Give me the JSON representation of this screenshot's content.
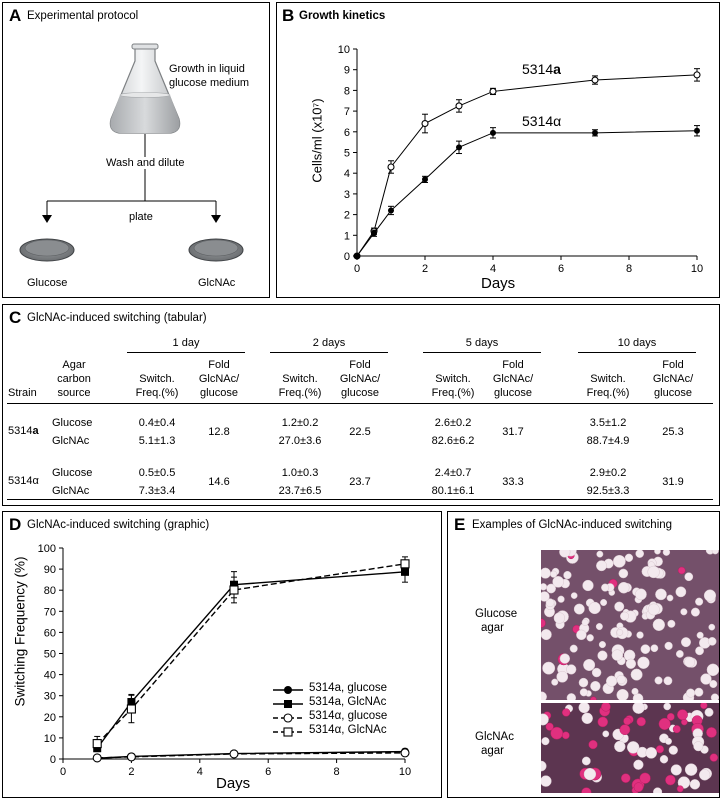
{
  "panelA": {
    "letter": "A",
    "title": "Experimental protocol",
    "growth_label_l1": "Growth in liquid",
    "growth_label_l2": "glucose medium",
    "wash_label": "Wash and dilute",
    "plate_label": "plate",
    "left_plate_label": "Glucose",
    "right_plate_label": "GlcNAc"
  },
  "panelB": {
    "letter": "B",
    "title": "Growth kinetics",
    "series_label_a": "5314a",
    "series_label_alpha": "5314α",
    "xlabel": "Days",
    "ylabel": "Cells/ml (x10⁷)"
  },
  "panelC": {
    "letter": "C",
    "title": "GlcNAc-induced switching (tabular)",
    "time_headers": [
      "1 day",
      "2 days",
      "5 days",
      "10 days"
    ],
    "col_strain": "Strain",
    "col_source_l1": "Agar",
    "col_source_l2": "carbon",
    "col_source_l3": "source",
    "col_freq_l1": "Switch.",
    "col_freq_l2": "Freq.(%)",
    "col_fold_l1": "Fold",
    "col_fold_l2": "GlcNAc/",
    "col_fold_l3": "glucose",
    "rows": [
      {
        "strain": "5314a",
        "source": "Glucose",
        "freqs": [
          "0.4±0.4",
          "1.2±0.2",
          "2.6±0.2",
          "3.5±1.2"
        ]
      },
      {
        "strain": "",
        "source": "GlcNAc",
        "freqs": [
          "5.1±1.3",
          "27.0±3.6",
          "82.6±6.2",
          "88.7±4.9"
        ]
      },
      {
        "strain": "5314α",
        "source": "Glucose",
        "freqs": [
          "0.5±0.5",
          "1.0±0.3",
          "2.4±0.7",
          "2.9±0.2"
        ]
      },
      {
        "strain": "",
        "source": "GlcNAc",
        "freqs": [
          "7.3±3.4",
          "23.7±6.5",
          "80.1±6.1",
          "92.5±3.3"
        ]
      }
    ],
    "folds": [
      [
        "12.8",
        "22.5",
        "31.7",
        "25.3"
      ],
      [
        "14.6",
        "23.7",
        "33.3",
        "31.9"
      ]
    ]
  },
  "panelD": {
    "letter": "D",
    "title": "GlcNAc-induced switching (graphic)",
    "xlabel": "Days",
    "ylabel": "Switching Frequency (%)",
    "legend": [
      {
        "strain": "5314a",
        "medium": ", glucose"
      },
      {
        "strain": "5314a",
        "medium": ", GlcNAc"
      },
      {
        "strain": "5314α",
        "medium": ", glucose"
      },
      {
        "strain": "5314α",
        "medium": ", GlcNAc"
      }
    ]
  },
  "panelE": {
    "letter": "E",
    "title": "Examples of GlcNAc-induced switching",
    "top_label_l1": "Glucose",
    "top_label_l2": "agar",
    "bottom_label_l1": "GlcNAc",
    "bottom_label_l2": "agar"
  },
  "chart_data": [
    {
      "type": "line",
      "title": "Growth kinetics",
      "xlabel": "Days",
      "ylabel": "Cells/ml (x10⁷)",
      "xlim": [
        0,
        10
      ],
      "ylim": [
        0,
        10
      ],
      "xticks": [
        0,
        2,
        4,
        6,
        8,
        10
      ],
      "yticks": [
        0,
        1,
        2,
        3,
        4,
        5,
        6,
        7,
        8,
        9,
        10
      ],
      "grid": false,
      "series": [
        {
          "name": "5314a",
          "marker": "open-circle",
          "x": [
            0,
            0.5,
            1,
            2,
            3,
            4,
            7,
            10
          ],
          "y": [
            0,
            1.2,
            4.3,
            6.4,
            7.25,
            7.95,
            8.5,
            8.75
          ],
          "err": [
            0.05,
            0.15,
            0.3,
            0.45,
            0.3,
            0.15,
            0.2,
            0.3
          ]
        },
        {
          "name": "5314α",
          "marker": "filled-circle",
          "x": [
            0,
            0.5,
            1,
            2,
            3,
            4,
            7,
            10
          ],
          "y": [
            0,
            1.1,
            2.2,
            3.7,
            5.25,
            5.95,
            5.95,
            6.05
          ],
          "err": [
            0.05,
            0.15,
            0.2,
            0.15,
            0.3,
            0.25,
            0.15,
            0.25
          ]
        }
      ]
    },
    {
      "type": "table",
      "title": "GlcNAc-induced switching (tabular)",
      "columns": [
        "Strain",
        "Agar carbon source",
        "1 day Switch. Freq.(%)",
        "1 day Fold GlcNAc/glucose",
        "2 days Switch. Freq.(%)",
        "2 days Fold GlcNAc/glucose",
        "5 days Switch. Freq.(%)",
        "5 days Fold GlcNAc/glucose",
        "10 days Switch. Freq.(%)",
        "10 days Fold GlcNAc/glucose"
      ],
      "rows": [
        [
          "5314a",
          "Glucose",
          "0.4±0.4",
          "12.8",
          "1.2±0.2",
          "22.5",
          "2.6±0.2",
          "31.7",
          "3.5±1.2",
          "25.3"
        ],
        [
          "5314a",
          "GlcNAc",
          "5.1±1.3",
          "12.8",
          "27.0±3.6",
          "22.5",
          "82.6±6.2",
          "31.7",
          "88.7±4.9",
          "25.3"
        ],
        [
          "5314α",
          "Glucose",
          "0.5±0.5",
          "14.6",
          "1.0±0.3",
          "23.7",
          "2.4±0.7",
          "33.3",
          "2.9±0.2",
          "31.9"
        ],
        [
          "5314α",
          "GlcNAc",
          "7.3±3.4",
          "14.6",
          "23.7±6.5",
          "23.7",
          "80.1±6.1",
          "33.3",
          "92.5±3.3",
          "31.9"
        ]
      ]
    },
    {
      "type": "line",
      "title": "GlcNAc-induced switching (graphic)",
      "xlabel": "Days",
      "ylabel": "Switching Frequency (%)",
      "xlim": [
        0,
        10
      ],
      "ylim": [
        0,
        100
      ],
      "xticks": [
        0,
        2,
        4,
        6,
        8,
        10
      ],
      "yticks": [
        0,
        10,
        20,
        30,
        40,
        50,
        60,
        70,
        80,
        90,
        100
      ],
      "grid": false,
      "legend_position": "center-right",
      "series": [
        {
          "name": "5314a, glucose",
          "marker": "filled-circle",
          "dash": false,
          "x": [
            1,
            2,
            5,
            10
          ],
          "y": [
            0.4,
            1.2,
            2.6,
            3.5
          ],
          "err": [
            0.4,
            0.2,
            0.2,
            1.2
          ]
        },
        {
          "name": "5314a, GlcNAc",
          "marker": "filled-square",
          "dash": false,
          "x": [
            1,
            2,
            5,
            10
          ],
          "y": [
            5.1,
            27.0,
            82.6,
            88.7
          ],
          "err": [
            1.3,
            3.6,
            6.2,
            4.9
          ]
        },
        {
          "name": "5314α, glucose",
          "marker": "open-circle",
          "dash": true,
          "x": [
            1,
            2,
            5,
            10
          ],
          "y": [
            0.5,
            1.0,
            2.4,
            2.9
          ],
          "err": [
            0.5,
            0.3,
            0.7,
            0.2
          ]
        },
        {
          "name": "5314α, GlcNAc",
          "marker": "open-square",
          "dash": true,
          "x": [
            1,
            2,
            5,
            10
          ],
          "y": [
            7.3,
            23.7,
            80.1,
            92.5
          ],
          "err": [
            3.4,
            6.5,
            6.1,
            3.3
          ]
        }
      ]
    }
  ]
}
